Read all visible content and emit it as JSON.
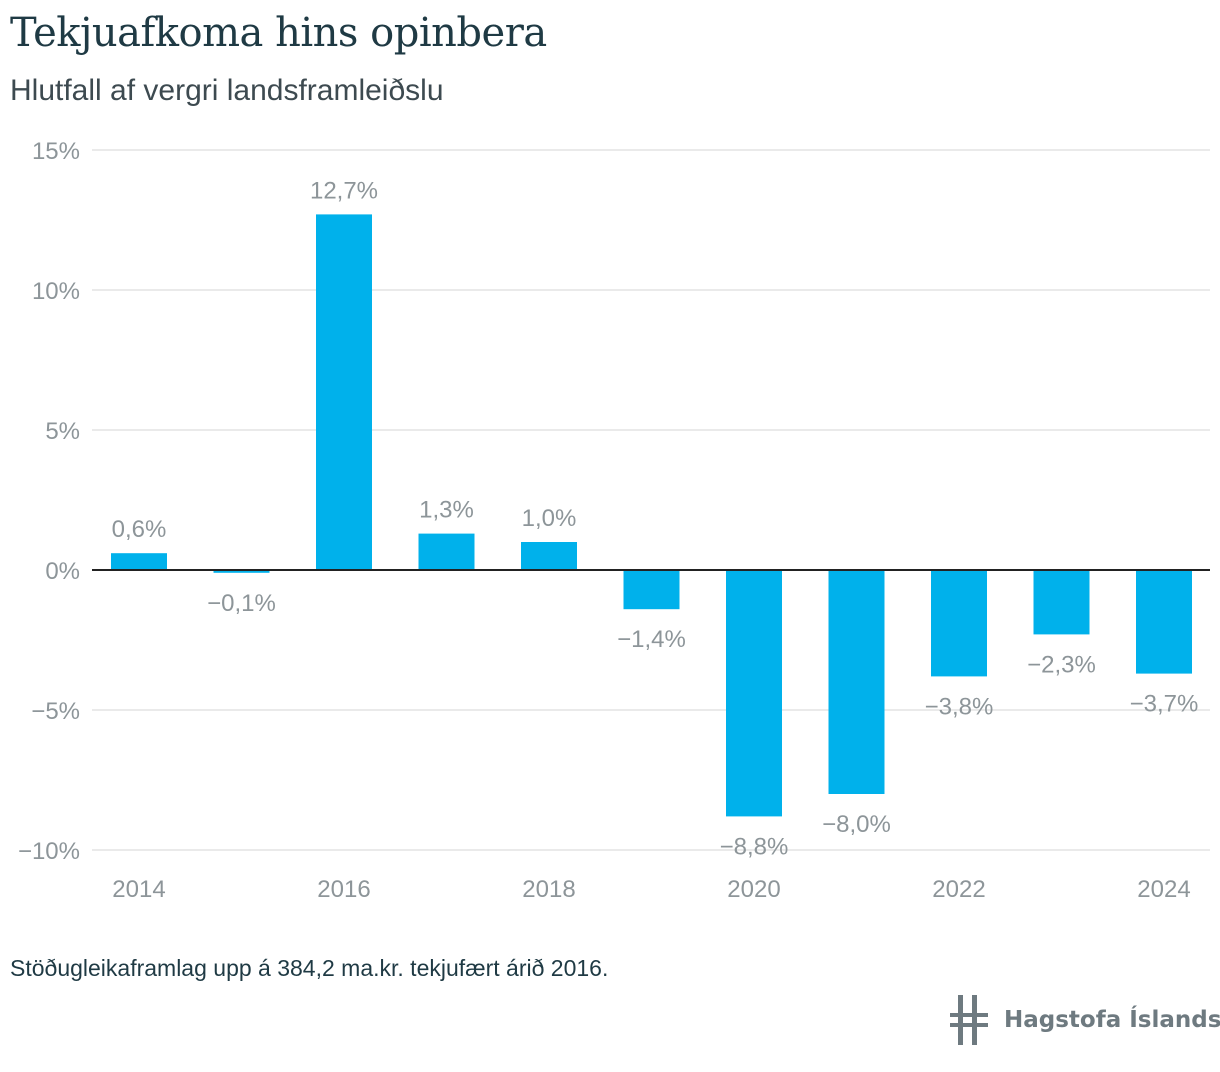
{
  "title": "Tekjuafkoma hins opinbera",
  "subtitle": "Hlutfall af vergri landsframleiðslu",
  "note": "Stöðugleikaframlag upp á 384,2 ma.kr. tekjufært árið 2016.",
  "brand": {
    "name": "Hagstofa Íslands"
  },
  "colors": {
    "bar": "#00b1eb",
    "axis": "#222222",
    "grid": "#e3e3e3",
    "label": "#8d9599",
    "title": "#1f3a44"
  },
  "chart_data": {
    "type": "bar",
    "categories": [
      "2014",
      "2015",
      "2016",
      "2017",
      "2018",
      "2019",
      "2020",
      "2021",
      "2022",
      "2023",
      "2024"
    ],
    "values": [
      0.6,
      -0.1,
      12.7,
      1.3,
      1.0,
      -1.4,
      -8.8,
      -8.0,
      -3.8,
      -2.3,
      -3.7
    ],
    "data_labels": [
      "0,6%",
      "−0,1%",
      "12,7%",
      "1,3%",
      "1,0%",
      "−1,4%",
      "−8,8%",
      "−8,0%",
      "−3,8%",
      "−2,3%",
      "−3,7%"
    ],
    "x_tick_labels": [
      "2014",
      "",
      "2016",
      "",
      "2018",
      "",
      "2020",
      "",
      "2022",
      "",
      "2024"
    ],
    "y_ticks": [
      15,
      10,
      5,
      0,
      -5,
      -10
    ],
    "y_tick_labels": [
      "15%",
      "10%",
      "5%",
      "0%",
      "−5%",
      "−10%"
    ],
    "ylim": [
      -10,
      15
    ],
    "grid": true
  }
}
